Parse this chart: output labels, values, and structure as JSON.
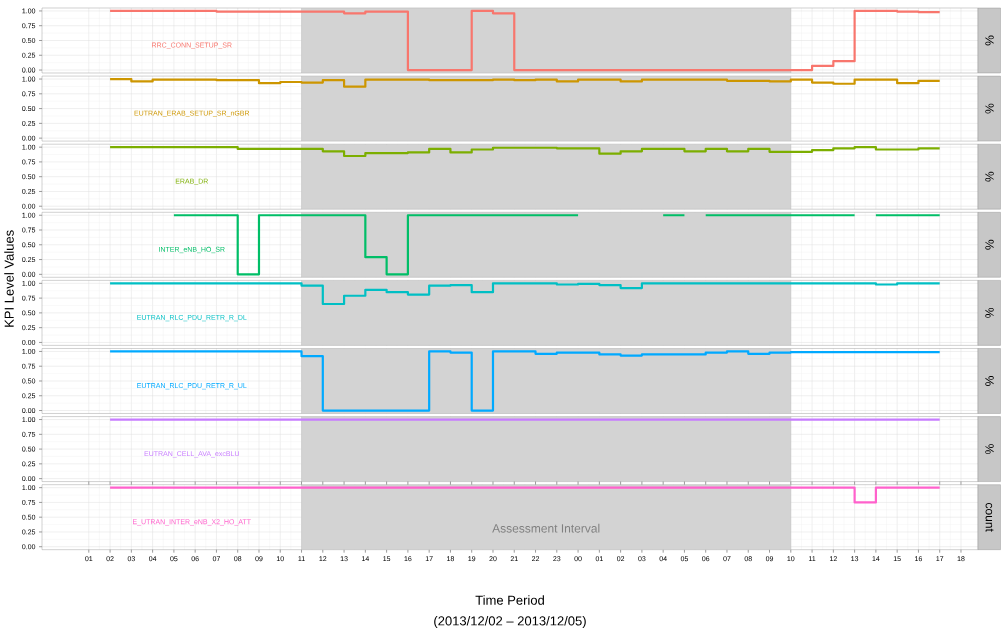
{
  "chart_data": [
    {
      "type": "step",
      "x": [
        2,
        3,
        4,
        5,
        6,
        7,
        8,
        9,
        10,
        11,
        12,
        13,
        14,
        15,
        16,
        17,
        18,
        19,
        20,
        21,
        22,
        23,
        24,
        25,
        26,
        27,
        28,
        29,
        30,
        31,
        32,
        33,
        34,
        35,
        36,
        37,
        38,
        39,
        40,
        41
      ],
      "xlim": [
        -1.2,
        42.8
      ],
      "xticks": [
        1,
        2,
        3,
        4,
        5,
        6,
        7,
        8,
        9,
        10,
        11,
        12,
        13,
        14,
        15,
        16,
        17,
        18,
        19,
        20,
        21,
        22,
        23,
        24,
        25,
        26,
        27,
        28,
        29,
        30,
        31,
        32,
        33,
        34,
        35,
        36,
        37,
        38,
        39,
        40,
        41,
        42
      ],
      "ylim": [
        -0.05,
        1.05
      ],
      "yticks": [
        {
          "value": 0,
          "label": "0.00"
        },
        {
          "value": 0.25,
          "label": "0.25"
        },
        {
          "value": 0.5,
          "label": "0.50"
        },
        {
          "value": 0.75,
          "label": "0.75"
        },
        {
          "value": 1,
          "label": "1.00"
        }
      ],
      "grid": true,
      "tick_labels": "y",
      "y2label": "%",
      "bands": [
        {
          "axis": "x",
          "from": 11,
          "to": 34,
          "color": "#d3d3d3"
        }
      ],
      "series": [
        {
          "name": "RRC_CONN_SETUP_SR",
          "color": "#f8766d",
          "values": [
            1,
            1,
            1,
            1,
            1,
            0.99,
            0.99,
            0.99,
            0.99,
            0.99,
            0.99,
            0.96,
            0.99,
            0.99,
            0,
            0,
            0,
            1,
            0.96,
            0,
            0,
            0,
            0,
            0,
            0,
            0,
            0,
            0,
            0,
            0,
            0,
            0,
            0,
            0.07,
            0.15,
            1,
            1,
            0.99,
            0.98,
            0.98
          ]
        }
      ]
    },
    {
      "type": "step",
      "x": [
        2,
        3,
        4,
        5,
        6,
        7,
        8,
        9,
        10,
        11,
        12,
        13,
        14,
        15,
        16,
        17,
        18,
        19,
        20,
        21,
        22,
        23,
        24,
        25,
        26,
        27,
        28,
        29,
        30,
        31,
        32,
        33,
        34,
        35,
        36,
        37,
        38,
        39,
        40,
        41
      ],
      "xlim": [
        -1.2,
        42.8
      ],
      "xticks": [
        1,
        2,
        3,
        4,
        5,
        6,
        7,
        8,
        9,
        10,
        11,
        12,
        13,
        14,
        15,
        16,
        17,
        18,
        19,
        20,
        21,
        22,
        23,
        24,
        25,
        26,
        27,
        28,
        29,
        30,
        31,
        32,
        33,
        34,
        35,
        36,
        37,
        38,
        39,
        40,
        41,
        42
      ],
      "ylim": [
        -0.05,
        1.05
      ],
      "yticks": [
        {
          "value": 0,
          "label": "0.00"
        },
        {
          "value": 0.25,
          "label": "0.25"
        },
        {
          "value": 0.5,
          "label": "0.50"
        },
        {
          "value": 0.75,
          "label": "0.75"
        },
        {
          "value": 1,
          "label": "1.00"
        }
      ],
      "grid": true,
      "tick_labels": "y",
      "y2label": "%",
      "bands": [
        {
          "axis": "x",
          "from": 11,
          "to": 34,
          "color": "#d3d3d3"
        }
      ],
      "series": [
        {
          "name": "EUTRAN_ERAB_SETUP_SR_nGBR",
          "color": "#cd9600",
          "values": [
            1,
            0.96,
            0.99,
            0.99,
            0.99,
            0.98,
            0.98,
            0.93,
            0.95,
            0.94,
            0.98,
            0.87,
            0.99,
            0.99,
            0.99,
            0.98,
            0.98,
            0.98,
            0.99,
            0.98,
            0.99,
            0.96,
            0.99,
            0.99,
            0.96,
            0.99,
            0.99,
            0.99,
            0.99,
            0.97,
            0.97,
            0.96,
            0.99,
            0.94,
            0.92,
            0.99,
            0.99,
            0.93,
            0.97,
            0.97
          ]
        }
      ]
    },
    {
      "type": "step",
      "x": [
        2,
        3,
        4,
        5,
        6,
        7,
        8,
        9,
        10,
        11,
        12,
        13,
        14,
        15,
        16,
        17,
        18,
        19,
        20,
        21,
        22,
        23,
        24,
        25,
        26,
        27,
        28,
        29,
        30,
        31,
        32,
        33,
        34,
        35,
        36,
        37,
        38,
        39,
        40,
        41
      ],
      "xlim": [
        -1.2,
        42.8
      ],
      "xticks": [
        1,
        2,
        3,
        4,
        5,
        6,
        7,
        8,
        9,
        10,
        11,
        12,
        13,
        14,
        15,
        16,
        17,
        18,
        19,
        20,
        21,
        22,
        23,
        24,
        25,
        26,
        27,
        28,
        29,
        30,
        31,
        32,
        33,
        34,
        35,
        36,
        37,
        38,
        39,
        40,
        41,
        42
      ],
      "ylim": [
        -0.05,
        1.05
      ],
      "yticks": [
        {
          "value": 0,
          "label": "0.00"
        },
        {
          "value": 0.25,
          "label": "0.25"
        },
        {
          "value": 0.5,
          "label": "0.50"
        },
        {
          "value": 0.75,
          "label": "0.75"
        },
        {
          "value": 1,
          "label": "1.00"
        }
      ],
      "grid": true,
      "tick_labels": "y",
      "y2label": "%",
      "bands": [
        {
          "axis": "x",
          "from": 11,
          "to": 34,
          "color": "#d3d3d3"
        }
      ],
      "series": [
        {
          "name": "ERAB_DR",
          "color": "#7cae00",
          "values": [
            1,
            1,
            1,
            1,
            1,
            1,
            0.97,
            0.97,
            0.97,
            0.97,
            0.93,
            0.85,
            0.9,
            0.9,
            0.91,
            0.97,
            0.91,
            0.96,
            0.99,
            0.99,
            0.99,
            0.98,
            0.98,
            0.89,
            0.93,
            0.97,
            0.97,
            0.93,
            0.97,
            0.93,
            0.97,
            0.92,
            0.92,
            0.95,
            0.98,
            1,
            0.96,
            0.96,
            0.98,
            0.98
          ]
        }
      ]
    },
    {
      "type": "step",
      "xlim": [
        -1.2,
        42.8
      ],
      "xticks": [
        1,
        2,
        3,
        4,
        5,
        6,
        7,
        8,
        9,
        10,
        11,
        12,
        13,
        14,
        15,
        16,
        17,
        18,
        19,
        20,
        21,
        22,
        23,
        24,
        25,
        26,
        27,
        28,
        29,
        30,
        31,
        32,
        33,
        34,
        35,
        36,
        37,
        38,
        39,
        40,
        41,
        42
      ],
      "ylim": [
        -0.05,
        1.05
      ],
      "yticks": [
        {
          "value": 0,
          "label": "0.00"
        },
        {
          "value": 0.25,
          "label": "0.25"
        },
        {
          "value": 0.5,
          "label": "0.50"
        },
        {
          "value": 0.75,
          "label": "0.75"
        },
        {
          "value": 1,
          "label": "1.00"
        }
      ],
      "grid": true,
      "tick_labels": "y",
      "y2label": "%",
      "bands": [
        {
          "axis": "x",
          "from": 11,
          "to": 34,
          "color": "#d3d3d3"
        }
      ],
      "series": [
        {
          "name": "INTER_eNB_HO_SR",
          "color": "#00be67",
          "x": [
            5,
            6,
            7,
            8,
            9,
            10,
            11,
            12,
            13,
            14,
            15,
            16,
            17,
            18,
            19,
            20,
            21,
            22,
            23,
            24,
            24.5,
            28,
            29,
            29.5,
            30,
            31,
            32,
            33,
            34,
            35,
            36,
            37,
            37.5,
            38,
            39,
            40,
            41
          ],
          "values": [
            1,
            1,
            1,
            0,
            1,
            1,
            1,
            1,
            1,
            0.29,
            0,
            1,
            1,
            1,
            1,
            1,
            1,
            1,
            1,
            1,
            null,
            1,
            1,
            null,
            1,
            1,
            1,
            1,
            1,
            1,
            1,
            1,
            null,
            1,
            1,
            1,
            1
          ]
        }
      ]
    },
    {
      "type": "step",
      "x": [
        2,
        3,
        4,
        5,
        6,
        7,
        8,
        9,
        10,
        11,
        12,
        13,
        14,
        15,
        16,
        17,
        18,
        19,
        20,
        21,
        22,
        23,
        24,
        25,
        26,
        27,
        28,
        29,
        30,
        31,
        32,
        33,
        34,
        35,
        36,
        37,
        38,
        39,
        40,
        41
      ],
      "xlim": [
        -1.2,
        42.8
      ],
      "xticks": [
        1,
        2,
        3,
        4,
        5,
        6,
        7,
        8,
        9,
        10,
        11,
        12,
        13,
        14,
        15,
        16,
        17,
        18,
        19,
        20,
        21,
        22,
        23,
        24,
        25,
        26,
        27,
        28,
        29,
        30,
        31,
        32,
        33,
        34,
        35,
        36,
        37,
        38,
        39,
        40,
        41,
        42
      ],
      "ylim": [
        -0.05,
        1.05
      ],
      "yticks": [
        {
          "value": 0,
          "label": "0.00"
        },
        {
          "value": 0.25,
          "label": "0.25"
        },
        {
          "value": 0.5,
          "label": "0.50"
        },
        {
          "value": 0.75,
          "label": "0.75"
        },
        {
          "value": 1,
          "label": "1.00"
        }
      ],
      "grid": true,
      "tick_labels": "y",
      "y2label": "%",
      "ylabel": "KPI Level Values",
      "bands": [
        {
          "axis": "x",
          "from": 11,
          "to": 34,
          "color": "#d3d3d3"
        }
      ],
      "series": [
        {
          "name": "EUTRAN_RLC_PDU_RETR_R_DL",
          "color": "#00bfc4",
          "values": [
            1,
            1,
            1,
            1,
            1,
            1,
            1,
            1,
            1,
            0.96,
            0.65,
            0.79,
            0.89,
            0.85,
            0.81,
            0.96,
            0.97,
            0.85,
            1,
            1,
            1,
            0.98,
            0.99,
            0.97,
            0.92,
            1,
            1,
            1,
            1,
            1,
            1,
            1,
            1,
            1,
            1,
            1,
            0.98,
            1,
            1,
            1
          ]
        }
      ]
    },
    {
      "type": "step",
      "x": [
        2,
        3,
        4,
        5,
        6,
        7,
        8,
        9,
        10,
        11,
        12,
        13,
        14,
        15,
        16,
        17,
        18,
        19,
        20,
        21,
        22,
        23,
        24,
        25,
        26,
        27,
        28,
        29,
        30,
        31,
        32,
        33,
        34,
        35,
        36,
        37,
        38,
        39,
        40,
        41
      ],
      "xlim": [
        -1.2,
        42.8
      ],
      "xticks": [
        1,
        2,
        3,
        4,
        5,
        6,
        7,
        8,
        9,
        10,
        11,
        12,
        13,
        14,
        15,
        16,
        17,
        18,
        19,
        20,
        21,
        22,
        23,
        24,
        25,
        26,
        27,
        28,
        29,
        30,
        31,
        32,
        33,
        34,
        35,
        36,
        37,
        38,
        39,
        40,
        41,
        42
      ],
      "ylim": [
        -0.05,
        1.05
      ],
      "yticks": [
        {
          "value": 0,
          "label": "0.00"
        },
        {
          "value": 0.25,
          "label": "0.25"
        },
        {
          "value": 0.5,
          "label": "0.50"
        },
        {
          "value": 0.75,
          "label": "0.75"
        },
        {
          "value": 1,
          "label": "1.00"
        }
      ],
      "grid": true,
      "tick_labels": "y",
      "y2label": "%",
      "bands": [
        {
          "axis": "x",
          "from": 11,
          "to": 34,
          "color": "#d3d3d3"
        }
      ],
      "series": [
        {
          "name": "EUTRAN_RLC_PDU_RETR_R_UL",
          "color": "#00a9ff",
          "values": [
            1,
            1,
            1,
            1,
            1,
            1,
            1,
            1,
            1,
            0.92,
            0,
            0,
            0,
            0,
            0,
            1,
            0.98,
            0,
            1,
            1,
            0.96,
            0.98,
            0.98,
            0.95,
            0.93,
            0.95,
            0.95,
            0.95,
            0.98,
            1,
            0.96,
            0.98,
            0.99,
            0.99,
            0.99,
            0.99,
            0.99,
            0.99,
            0.99,
            0.99
          ]
        }
      ]
    },
    {
      "type": "step",
      "x": [
        2,
        3,
        4,
        5,
        6,
        7,
        8,
        9,
        10,
        11,
        12,
        13,
        14,
        15,
        16,
        17,
        18,
        19,
        20,
        21,
        22,
        23,
        24,
        25,
        26,
        27,
        28,
        29,
        30,
        31,
        32,
        33,
        34,
        35,
        36,
        37,
        38,
        39,
        40,
        41
      ],
      "xlim": [
        -1.2,
        42.8
      ],
      "xticks": [
        1,
        2,
        3,
        4,
        5,
        6,
        7,
        8,
        9,
        10,
        11,
        12,
        13,
        14,
        15,
        16,
        17,
        18,
        19,
        20,
        21,
        22,
        23,
        24,
        25,
        26,
        27,
        28,
        29,
        30,
        31,
        32,
        33,
        34,
        35,
        36,
        37,
        38,
        39,
        40,
        41,
        42
      ],
      "ylim": [
        -0.05,
        1.05
      ],
      "yticks": [
        {
          "value": 0,
          "label": "0.00"
        },
        {
          "value": 0.25,
          "label": "0.25"
        },
        {
          "value": 0.5,
          "label": "0.50"
        },
        {
          "value": 0.75,
          "label": "0.75"
        },
        {
          "value": 1,
          "label": "1.00"
        }
      ],
      "grid": true,
      "tick_labels": "y",
      "y2label": "%",
      "bands": [
        {
          "axis": "x",
          "from": 11,
          "to": 34,
          "color": "#d3d3d3"
        }
      ],
      "series": [
        {
          "name": "EUTRAN_CELL_AVA_excBLU",
          "color": "#c77cff",
          "values": [
            1,
            1,
            1,
            1,
            1,
            1,
            1,
            1,
            1,
            1,
            1,
            1,
            1,
            1,
            1,
            1,
            1,
            1,
            1,
            1,
            1,
            1,
            1,
            1,
            1,
            1,
            1,
            1,
            1,
            1,
            1,
            1,
            1,
            1,
            1,
            1,
            1,
            1,
            1,
            1
          ]
        }
      ]
    },
    {
      "type": "step",
      "x": [
        2,
        3,
        4,
        5,
        6,
        7,
        8,
        9,
        10,
        11,
        12,
        13,
        14,
        15,
        16,
        17,
        18,
        19,
        20,
        21,
        22,
        23,
        24,
        25,
        26,
        27,
        28,
        29,
        30,
        31,
        32,
        33,
        34,
        35,
        36,
        37,
        38,
        39,
        40,
        41
      ],
      "xlim": [
        -1.2,
        42.8
      ],
      "xticks": [
        {
          "value": 1,
          "label": "01"
        },
        {
          "value": 2,
          "label": "02"
        },
        {
          "value": 3,
          "label": "03"
        },
        {
          "value": 4,
          "label": "04"
        },
        {
          "value": 5,
          "label": "05"
        },
        {
          "value": 6,
          "label": "06"
        },
        {
          "value": 7,
          "label": "07"
        },
        {
          "value": 8,
          "label": "08"
        },
        {
          "value": 9,
          "label": "09"
        },
        {
          "value": 10,
          "label": "10"
        },
        {
          "value": 11,
          "label": "11"
        },
        {
          "value": 12,
          "label": "12"
        },
        {
          "value": 13,
          "label": "13"
        },
        {
          "value": 14,
          "label": "14"
        },
        {
          "value": 15,
          "label": "15"
        },
        {
          "value": 16,
          "label": "16"
        },
        {
          "value": 17,
          "label": "17"
        },
        {
          "value": 18,
          "label": "18"
        },
        {
          "value": 19,
          "label": "19"
        },
        {
          "value": 20,
          "label": "20"
        },
        {
          "value": 21,
          "label": "21"
        },
        {
          "value": 22,
          "label": "22"
        },
        {
          "value": 23,
          "label": "23"
        },
        {
          "value": 24,
          "label": "00"
        },
        {
          "value": 25,
          "label": "01"
        },
        {
          "value": 26,
          "label": "02"
        },
        {
          "value": 27,
          "label": "03"
        },
        {
          "value": 28,
          "label": "04"
        },
        {
          "value": 29,
          "label": "05"
        },
        {
          "value": 30,
          "label": "06"
        },
        {
          "value": 31,
          "label": "07"
        },
        {
          "value": 32,
          "label": "08"
        },
        {
          "value": 33,
          "label": "09"
        },
        {
          "value": 34,
          "label": "10"
        },
        {
          "value": 35,
          "label": "11"
        },
        {
          "value": 36,
          "label": "12"
        },
        {
          "value": 37,
          "label": "13"
        },
        {
          "value": 38,
          "label": "14"
        },
        {
          "value": 39,
          "label": "15"
        },
        {
          "value": 40,
          "label": "16"
        },
        {
          "value": 41,
          "label": "17"
        },
        {
          "value": 42,
          "label": "18"
        }
      ],
      "ylim": [
        -0.05,
        1.05
      ],
      "yticks": [
        {
          "value": 0,
          "label": "0.00"
        },
        {
          "value": 0.25,
          "label": "0.25"
        },
        {
          "value": 0.5,
          "label": "0.50"
        },
        {
          "value": 0.75,
          "label": "0.75"
        },
        {
          "value": 1,
          "label": "1.00"
        }
      ],
      "grid": true,
      "y2label": "count",
      "xlabel": "Time Period",
      "annotations": [
        "(2013/12/02 – 2013/12/05)"
      ],
      "bands": [
        {
          "axis": "x",
          "from": 11,
          "to": 34,
          "color": "#d3d3d3",
          "label": "Assessment Interval"
        }
      ],
      "series": [
        {
          "name": "E_UTRAN_INTER_eNB_X2_HO_ATT",
          "color": "#ff61cc",
          "values": [
            1,
            1,
            1,
            1,
            1,
            1,
            1,
            1,
            1,
            1,
            1,
            1,
            1,
            1,
            1,
            1,
            1,
            1,
            1,
            1,
            1,
            1,
            1,
            1,
            1,
            1,
            1,
            1,
            1,
            1,
            1,
            1,
            1,
            1,
            1,
            0.75,
            1,
            1,
            1,
            1
          ]
        }
      ]
    }
  ]
}
